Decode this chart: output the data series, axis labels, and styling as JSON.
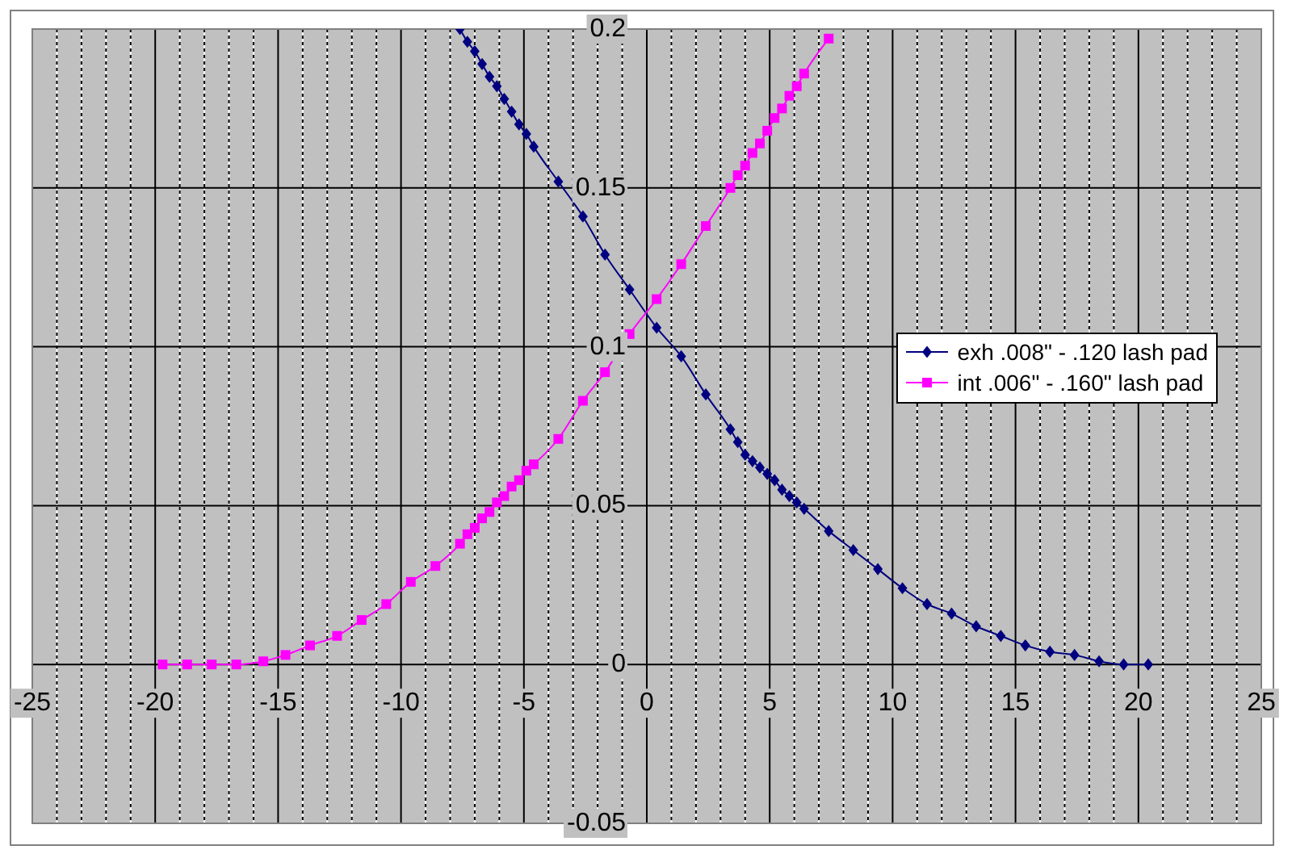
{
  "chart_data": {
    "type": "line",
    "xlim": [
      -25,
      25
    ],
    "xticks": [
      -25,
      {
        "value": -24,
        "label": null
      },
      {
        "value": -23,
        "label": null
      },
      {
        "value": -22,
        "label": null
      },
      {
        "value": -21,
        "label": null
      },
      -20,
      {
        "value": -19,
        "label": null
      },
      {
        "value": -18,
        "label": null
      },
      {
        "value": -17,
        "label": null
      },
      {
        "value": -16,
        "label": null
      },
      -15,
      {
        "value": -14,
        "label": null
      },
      {
        "value": -13,
        "label": null
      },
      {
        "value": -12,
        "label": null
      },
      {
        "value": -11,
        "label": null
      },
      -10,
      {
        "value": -9,
        "label": null
      },
      {
        "value": -8,
        "label": null
      },
      {
        "value": -7,
        "label": null
      },
      {
        "value": -6,
        "label": null
      },
      -5,
      {
        "value": -4,
        "label": null
      },
      {
        "value": -3,
        "label": null
      },
      {
        "value": -2,
        "label": null
      },
      {
        "value": -1,
        "label": null
      },
      0,
      {
        "value": 1,
        "label": null
      },
      {
        "value": 2,
        "label": null
      },
      {
        "value": 3,
        "label": null
      },
      {
        "value": 4,
        "label": null
      },
      5,
      {
        "value": 6,
        "label": null
      },
      {
        "value": 7,
        "label": null
      },
      {
        "value": 8,
        "label": null
      },
      {
        "value": 9,
        "label": null
      },
      10,
      {
        "value": 11,
        "label": null
      },
      {
        "value": 12,
        "label": null
      },
      {
        "value": 13,
        "label": null
      },
      {
        "value": 14,
        "label": null
      },
      15,
      {
        "value": 16,
        "label": null
      },
      {
        "value": 17,
        "label": null
      },
      {
        "value": 18,
        "label": null
      },
      {
        "value": 19,
        "label": null
      },
      20,
      {
        "value": 21,
        "label": null
      },
      {
        "value": 22,
        "label": null
      },
      {
        "value": 23,
        "label": null
      },
      {
        "value": 24,
        "label": null
      },
      25
    ],
    "ylim": [
      -0.05,
      0.2
    ],
    "yticks": [
      -0.05,
      0,
      0.05,
      0.1,
      0.15,
      0.2
    ],
    "grid": true,
    "legend": "right",
    "line_style": "solid",
    "series": [
      {
        "name": "exh .008\" - .120 lash pad",
        "color": "#000080",
        "marker": "diamond",
        "x": [
          -7.6,
          -7.3,
          -7.0,
          -6.7,
          -6.4,
          -6.1,
          -5.8,
          -5.5,
          -5.2,
          -4.9,
          -4.6,
          -3.6,
          -2.6,
          -1.7,
          -0.7,
          0.4,
          1.4,
          2.4,
          3.4,
          3.7,
          4.0,
          4.3,
          4.6,
          4.9,
          5.2,
          5.5,
          5.8,
          6.1,
          6.4,
          7.4,
          8.4,
          9.4,
          10.4,
          11.4,
          12.4,
          13.4,
          14.4,
          15.4,
          16.4,
          17.4,
          18.4,
          19.4,
          20.4
        ],
        "values": [
          0.2,
          0.196,
          0.193,
          0.189,
          0.185,
          0.182,
          0.178,
          0.174,
          0.17,
          0.167,
          0.163,
          0.152,
          0.141,
          0.129,
          0.118,
          0.106,
          0.097,
          0.085,
          0.074,
          0.07,
          0.066,
          0.064,
          0.062,
          0.06,
          0.058,
          0.055,
          0.053,
          0.051,
          0.049,
          0.042,
          0.036,
          0.03,
          0.024,
          0.019,
          0.016,
          0.012,
          0.009,
          0.006,
          0.004,
          0.003,
          0.001,
          0,
          0
        ]
      },
      {
        "name": "int .006\" - .160\" lash pad",
        "color": "#ff00ff",
        "marker": "square",
        "x": [
          -19.7,
          -18.7,
          -17.7,
          -16.7,
          -15.6,
          -14.7,
          -13.7,
          -12.6,
          -11.6,
          -10.6,
          -9.6,
          -8.6,
          -7.6,
          -7.3,
          -7.0,
          -6.7,
          -6.4,
          -6.1,
          -5.8,
          -5.5,
          -5.2,
          -4.9,
          -4.6,
          -3.6,
          -2.6,
          -1.7,
          -0.7,
          0.4,
          1.4,
          2.4,
          3.4,
          3.7,
          4.0,
          4.3,
          4.6,
          4.9,
          5.2,
          5.5,
          5.8,
          6.1,
          6.4,
          7.4
        ],
        "values": [
          0,
          0,
          0,
          0,
          0.001,
          0.003,
          0.006,
          0.009,
          0.014,
          0.019,
          0.026,
          0.031,
          0.038,
          0.041,
          0.043,
          0.046,
          0.048,
          0.051,
          0.053,
          0.056,
          0.058,
          0.061,
          0.063,
          0.071,
          0.083,
          0.092,
          0.104,
          0.115,
          0.126,
          0.138,
          0.15,
          0.154,
          0.157,
          0.161,
          0.164,
          0.168,
          0.172,
          0.175,
          0.179,
          0.182,
          0.186,
          0.197
        ]
      }
    ]
  }
}
